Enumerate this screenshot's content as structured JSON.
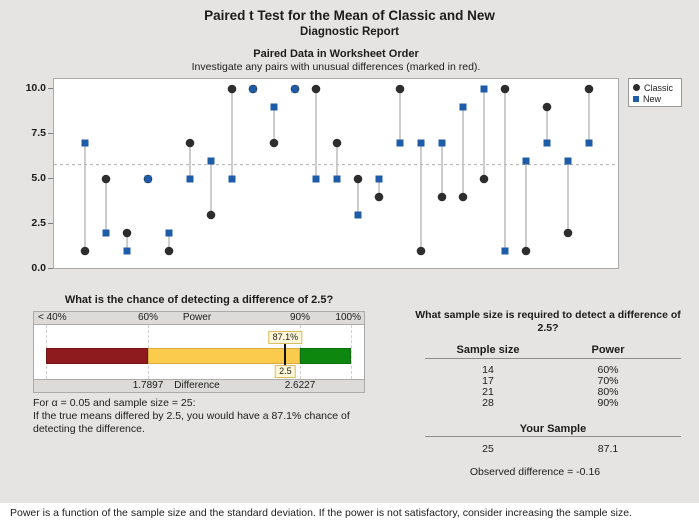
{
  "header": {
    "title": "Paired t Test for the Mean of Classic and New",
    "subtitle": "Diagnostic Report"
  },
  "chart_data": [
    {
      "type": "scatter",
      "title": "Paired Data in Worksheet Order",
      "subtitle": "Investigate any pairs with unusual differences (marked in red).",
      "x": [
        1,
        2,
        3,
        4,
        5,
        6,
        7,
        8,
        9,
        10,
        11,
        12,
        13,
        14,
        15,
        16,
        17,
        18,
        19,
        20,
        21,
        22,
        23,
        24,
        25
      ],
      "series": [
        {
          "name": "Classic",
          "marker": "circle",
          "color": "#2d2d2d",
          "values": [
            1,
            5,
            2,
            5,
            1,
            7,
            3,
            10,
            10,
            7,
            10,
            10,
            7,
            5,
            4,
            10,
            1,
            4,
            4,
            5,
            10,
            1,
            9,
            2,
            10
          ]
        },
        {
          "name": "New",
          "marker": "square",
          "color": "#1f5ca8",
          "values": [
            7,
            2,
            1,
            5,
            2,
            5,
            6,
            5,
            10,
            9,
            10,
            5,
            5,
            3,
            5,
            7,
            7,
            7,
            9,
            10,
            1,
            6,
            7,
            6,
            7
          ]
        }
      ],
      "ylim": [
        0,
        10
      ],
      "y_ticks": [
        "10.0",
        "7.5",
        "5.0",
        "2.5",
        "0.0"
      ],
      "reference_line": 5.8,
      "grid": false,
      "legend_position": "outside-top-right",
      "connector_color": "#bcbcbc",
      "reference_line_color": "#b0b0b0"
    },
    {
      "type": "gauge",
      "title": "What is the chance of detecting a difference of 2.5?",
      "range": [
        40,
        100
      ],
      "gridlines": [
        40,
        60,
        90,
        100
      ],
      "axis_top_labels": [
        "< 40%",
        "60%",
        "Power",
        "90%",
        "100%"
      ],
      "axis_bottom_labels": [
        "1.7897",
        "Difference",
        "2.6227"
      ],
      "segments": [
        {
          "from": 40,
          "to": 60,
          "color": "#8e1c1e",
          "border": "#741417"
        },
        {
          "from": 60,
          "to": 90,
          "color": "#facb4c",
          "border": "#d8ae3e"
        },
        {
          "from": 90,
          "to": 100,
          "color": "#0e870e",
          "border": "#0b6d0b"
        }
      ],
      "marker": {
        "power": 87.1,
        "power_label": "87.1%",
        "difference_label": "2.5"
      }
    },
    {
      "type": "table",
      "title_lines": [
        "What sample size is required to detect a difference of",
        "2.5?"
      ],
      "columns": [
        "Sample size",
        "Power"
      ],
      "rows": [
        [
          "14",
          "60%"
        ],
        [
          "17",
          "70%"
        ],
        [
          "21",
          "80%"
        ],
        [
          "28",
          "90%"
        ]
      ],
      "your_sample_label": "Your Sample",
      "your_sample_row": [
        "25",
        "87.1"
      ],
      "observed_difference": "Observed difference = -0.16"
    }
  ],
  "power_note_lines": [
    "For α = 0.05 and sample size = 25:",
    "If the true means differed by 2.5, you would have a 87.1% chance of",
    "detecting the difference."
  ],
  "footer": {
    "note": "Power is a function of the sample size and the standard deviation. If the power is not satisfactory, consider increasing the sample size."
  }
}
